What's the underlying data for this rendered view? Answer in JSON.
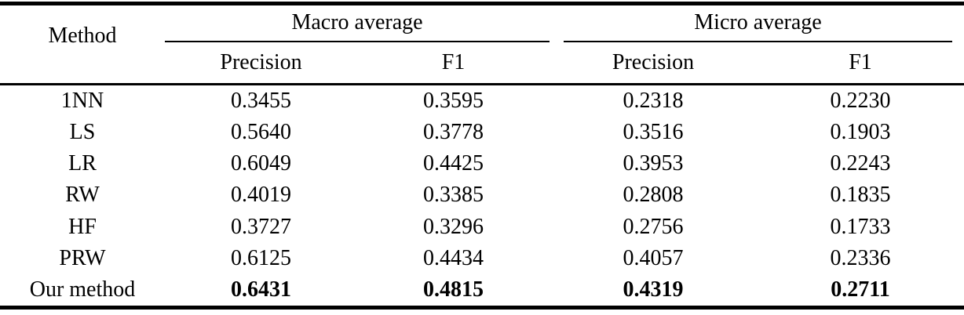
{
  "table": {
    "method_header": "Method",
    "group_headers": [
      {
        "label": "Macro average"
      },
      {
        "label": "Micro average"
      }
    ],
    "sub_headers": [
      "Precision",
      "F1",
      "Precision",
      "F1"
    ],
    "rows": [
      {
        "method": "1NN",
        "values": [
          "0.3455",
          "0.3595",
          "0.2318",
          "0.2230"
        ],
        "bold": false
      },
      {
        "method": "LS",
        "values": [
          "0.5640",
          "0.3778",
          "0.3516",
          "0.1903"
        ],
        "bold": false
      },
      {
        "method": "LR",
        "values": [
          "0.6049",
          "0.4425",
          "0.3953",
          "0.2243"
        ],
        "bold": false
      },
      {
        "method": "RW",
        "values": [
          "0.4019",
          "0.3385",
          "0.2808",
          "0.1835"
        ],
        "bold": false
      },
      {
        "method": "HF",
        "values": [
          "0.3727",
          "0.3296",
          "0.2756",
          "0.1733"
        ],
        "bold": false
      },
      {
        "method": "PRW",
        "values": [
          "0.6125",
          "0.4434",
          "0.4057",
          "0.2336"
        ],
        "bold": false
      },
      {
        "method": "Our method",
        "values": [
          "0.6431",
          "0.4815",
          "0.4319",
          "0.2711"
        ],
        "bold": true
      }
    ],
    "colors": {
      "text": "#000000",
      "background": "#ffffff",
      "rule": "#000000"
    }
  }
}
